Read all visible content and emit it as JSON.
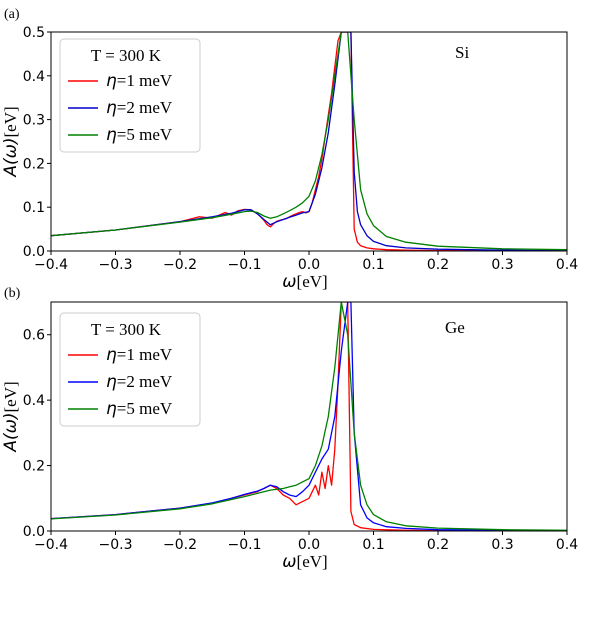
{
  "chart_data": [
    {
      "type": "line",
      "panel_label": "(a)",
      "material": "Si",
      "legend_title": "T = 300 K",
      "xlabel_symbol": "ω",
      "xlabel_unit": "[eV]",
      "ylabel_symbol": "A(ω)",
      "ylabel_unit": "[eV]",
      "xlim": [
        -0.4,
        0.4
      ],
      "ylim": [
        0,
        0.5
      ],
      "xticks": [
        "−0.4",
        "−0.3",
        "−0.2",
        "−0.1",
        "0.0",
        "0.1",
        "0.2",
        "0.3",
        "0.4"
      ],
      "yticks": [
        "0.0",
        "0.1",
        "0.2",
        "0.3",
        "0.4",
        "0.5"
      ],
      "legend_position": "upper-left",
      "series": [
        {
          "name_symbol": "η",
          "name_value": "=1 meV",
          "color": "#ff0000",
          "x": [
            -0.4,
            -0.3,
            -0.2,
            -0.17,
            -0.15,
            -0.13,
            -0.12,
            -0.11,
            -0.1,
            -0.09,
            -0.08,
            -0.075,
            -0.07,
            -0.065,
            -0.06,
            -0.055,
            -0.05,
            -0.045,
            -0.04,
            -0.035,
            -0.03,
            -0.025,
            -0.02,
            -0.015,
            -0.01,
            -0.005,
            0.0,
            0.005,
            0.01,
            0.015,
            0.02,
            0.025,
            0.03,
            0.035,
            0.04,
            0.045,
            0.05,
            0.055,
            0.06,
            0.065,
            0.07,
            0.075,
            0.08,
            0.09,
            0.1,
            0.12,
            0.15,
            0.2,
            0.3,
            0.4
          ],
          "y": [
            0.035,
            0.048,
            0.067,
            0.078,
            0.075,
            0.088,
            0.082,
            0.092,
            0.095,
            0.094,
            0.085,
            0.078,
            0.07,
            0.06,
            0.055,
            0.062,
            0.068,
            0.07,
            0.072,
            0.074,
            0.078,
            0.082,
            0.085,
            0.088,
            0.09,
            0.087,
            0.09,
            0.11,
            0.14,
            0.17,
            0.21,
            0.26,
            0.31,
            0.36,
            0.42,
            0.48,
            0.5,
            0.5,
            0.5,
            0.5,
            0.05,
            0.02,
            0.012,
            0.007,
            0.005,
            0.003,
            0.002,
            0.001,
            0.001,
            0.001
          ]
        },
        {
          "name_symbol": "η",
          "name_value": "=2 meV",
          "color": "#0000cc",
          "x": [
            -0.4,
            -0.3,
            -0.2,
            -0.15,
            -0.12,
            -0.1,
            -0.09,
            -0.08,
            -0.07,
            -0.06,
            -0.05,
            -0.04,
            -0.03,
            -0.02,
            -0.01,
            0.0,
            0.01,
            0.02,
            0.03,
            0.04,
            0.05,
            0.06,
            0.065,
            0.07,
            0.075,
            0.08,
            0.09,
            0.1,
            0.12,
            0.15,
            0.2,
            0.3,
            0.4
          ],
          "y": [
            0.035,
            0.048,
            0.067,
            0.078,
            0.086,
            0.094,
            0.094,
            0.085,
            0.072,
            0.06,
            0.067,
            0.072,
            0.077,
            0.082,
            0.087,
            0.09,
            0.13,
            0.19,
            0.27,
            0.38,
            0.5,
            0.5,
            0.5,
            0.18,
            0.09,
            0.06,
            0.035,
            0.022,
            0.012,
            0.007,
            0.004,
            0.002,
            0.001
          ]
        },
        {
          "name_symbol": "η",
          "name_value": "=5 meV",
          "color": "#008000",
          "x": [
            -0.4,
            -0.3,
            -0.2,
            -0.15,
            -0.12,
            -0.1,
            -0.09,
            -0.08,
            -0.07,
            -0.06,
            -0.05,
            -0.04,
            -0.03,
            -0.02,
            -0.01,
            0.0,
            0.01,
            0.02,
            0.03,
            0.04,
            0.05,
            0.06,
            0.07,
            0.08,
            0.09,
            0.1,
            0.12,
            0.15,
            0.2,
            0.3,
            0.4
          ],
          "y": [
            0.035,
            0.048,
            0.066,
            0.076,
            0.084,
            0.09,
            0.091,
            0.088,
            0.08,
            0.075,
            0.078,
            0.085,
            0.092,
            0.1,
            0.11,
            0.125,
            0.16,
            0.22,
            0.3,
            0.4,
            0.5,
            0.5,
            0.3,
            0.14,
            0.085,
            0.058,
            0.033,
            0.02,
            0.011,
            0.005,
            0.003
          ]
        }
      ]
    },
    {
      "type": "line",
      "panel_label": "(b)",
      "material": "Ge",
      "legend_title": "T = 300 K",
      "xlabel_symbol": "ω",
      "xlabel_unit": "[eV]",
      "ylabel_symbol": "A(ω)",
      "ylabel_unit": "[eV]",
      "xlim": [
        -0.4,
        0.4
      ],
      "ylim": [
        0,
        0.7
      ],
      "xticks": [
        "−0.4",
        "−0.3",
        "−0.2",
        "−0.1",
        "0.0",
        "0.1",
        "0.2",
        "0.3",
        "0.4"
      ],
      "yticks": [
        "0.0",
        "0.2",
        "0.4",
        "0.6"
      ],
      "legend_position": "upper-left",
      "series": [
        {
          "name_symbol": "η",
          "name_value": "=1 meV",
          "color": "#ff0000",
          "x": [
            -0.4,
            -0.3,
            -0.2,
            -0.15,
            -0.12,
            -0.1,
            -0.08,
            -0.07,
            -0.06,
            -0.05,
            -0.04,
            -0.03,
            -0.02,
            -0.01,
            0.0,
            0.01,
            0.015,
            0.02,
            0.025,
            0.03,
            0.035,
            0.04,
            0.045,
            0.05,
            0.055,
            0.06,
            0.065,
            0.07,
            0.08,
            0.1,
            0.15,
            0.2,
            0.3,
            0.4
          ],
          "y": [
            0.038,
            0.05,
            0.07,
            0.085,
            0.1,
            0.11,
            0.12,
            0.13,
            0.14,
            0.13,
            0.11,
            0.1,
            0.08,
            0.09,
            0.1,
            0.14,
            0.11,
            0.18,
            0.13,
            0.2,
            0.14,
            0.25,
            0.45,
            0.7,
            0.7,
            0.7,
            0.06,
            0.02,
            0.01,
            0.005,
            0.002,
            0.001,
            0.001,
            0.001
          ]
        },
        {
          "name_symbol": "η",
          "name_value": "=2 meV",
          "color": "#0000ff",
          "x": [
            -0.4,
            -0.3,
            -0.2,
            -0.15,
            -0.12,
            -0.1,
            -0.08,
            -0.07,
            -0.06,
            -0.05,
            -0.04,
            -0.03,
            -0.02,
            -0.01,
            0.0,
            0.01,
            0.02,
            0.03,
            0.04,
            0.05,
            0.06,
            0.065,
            0.07,
            0.08,
            0.09,
            0.1,
            0.12,
            0.15,
            0.2,
            0.3,
            0.4
          ],
          "y": [
            0.038,
            0.05,
            0.07,
            0.086,
            0.1,
            0.112,
            0.122,
            0.13,
            0.14,
            0.135,
            0.12,
            0.11,
            0.105,
            0.12,
            0.14,
            0.18,
            0.22,
            0.25,
            0.35,
            0.55,
            0.7,
            0.7,
            0.3,
            0.08,
            0.04,
            0.025,
            0.013,
            0.008,
            0.004,
            0.002,
            0.001
          ]
        },
        {
          "name_symbol": "η",
          "name_value": "=5 meV",
          "color": "#008000",
          "x": [
            -0.4,
            -0.3,
            -0.2,
            -0.15,
            -0.1,
            -0.08,
            -0.06,
            -0.04,
            -0.03,
            -0.02,
            -0.01,
            0.0,
            0.01,
            0.02,
            0.03,
            0.04,
            0.05,
            0.06,
            0.07,
            0.08,
            0.09,
            0.1,
            0.12,
            0.15,
            0.2,
            0.3,
            0.4
          ],
          "y": [
            0.037,
            0.049,
            0.068,
            0.083,
            0.105,
            0.115,
            0.125,
            0.13,
            0.135,
            0.14,
            0.15,
            0.16,
            0.2,
            0.26,
            0.35,
            0.5,
            0.7,
            0.6,
            0.3,
            0.14,
            0.08,
            0.05,
            0.028,
            0.016,
            0.009,
            0.004,
            0.002
          ]
        }
      ]
    }
  ]
}
